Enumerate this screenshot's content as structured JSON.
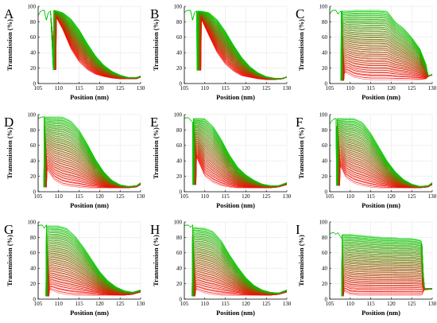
{
  "chart_data": [
    {
      "type": "line",
      "label": "A",
      "xlabel": "Position (nm)",
      "ylabel": "Transmission (%)",
      "xlim": [
        105,
        130
      ],
      "ylim": [
        0,
        100
      ],
      "xticks": [
        105,
        110,
        115,
        120,
        125,
        130
      ],
      "yticks": [
        0,
        20,
        40,
        60,
        80,
        100
      ],
      "grid": true,
      "series_count": 120,
      "color_range": [
        "#ff0000",
        "#00cc00"
      ],
      "baseline": {
        "x": [
          105,
          105.5,
          106,
          106.5,
          107,
          107.5,
          108
        ],
        "y": [
          88,
          93,
          95,
          95,
          82,
          92,
          94
        ]
      },
      "front_x": [
        108.8,
        109.5
      ],
      "top_curve": {
        "x": [
          109,
          111,
          113,
          115,
          117,
          119,
          121,
          123,
          125,
          127,
          129,
          130
        ],
        "y": [
          95,
          92,
          84,
          70,
          52,
          36,
          24,
          16,
          11,
          8,
          8,
          10
        ]
      },
      "bottom_curve": {
        "x": [
          109,
          111,
          113,
          115,
          117,
          119,
          121,
          123,
          125,
          127,
          129,
          130
        ],
        "y": [
          90,
          70,
          45,
          28,
          18,
          12,
          9,
          7,
          6,
          6,
          6,
          8
        ]
      }
    },
    {
      "type": "line",
      "label": "B",
      "xlabel": "Position (nm)",
      "ylabel": "Transmission (%)",
      "xlim": [
        105,
        130
      ],
      "ylim": [
        0,
        100
      ],
      "xticks": [
        105,
        110,
        115,
        120,
        125,
        130
      ],
      "yticks": [
        0,
        20,
        40,
        60,
        80,
        100
      ],
      "grid": true,
      "series_count": 120,
      "color_range": [
        "#ff0000",
        "#00cc00"
      ],
      "baseline": {
        "x": [
          105,
          105.5,
          106,
          106.5,
          107,
          107.5,
          108
        ],
        "y": [
          92,
          94,
          95,
          95,
          82,
          92,
          94
        ]
      },
      "front_x": [
        108.2,
        109.2
      ],
      "top_curve": {
        "x": [
          109,
          111,
          113,
          115,
          117,
          119,
          121,
          123,
          125,
          127,
          129,
          130
        ],
        "y": [
          94,
          92,
          83,
          68,
          50,
          34,
          22,
          14,
          9,
          7,
          7,
          9
        ]
      },
      "bottom_curve": {
        "x": [
          109,
          111,
          113,
          115,
          117,
          119,
          121,
          123,
          125,
          127,
          129,
          130
        ],
        "y": [
          85,
          62,
          40,
          25,
          16,
          10,
          8,
          6,
          5,
          5,
          6,
          8
        ]
      }
    },
    {
      "type": "line",
      "label": "C",
      "xlabel": "Position (nm)",
      "ylabel": "Transmission (%)",
      "xlim": [
        105,
        130
      ],
      "ylim": [
        0,
        100
      ],
      "xticks": [
        105,
        110,
        115,
        120,
        125,
        130
      ],
      "yticks": [
        0,
        20,
        40,
        60,
        80,
        100
      ],
      "grid": true,
      "series_count": 120,
      "color_range": [
        "#ff0000",
        "#00cc00"
      ],
      "baseline": {
        "x": [
          105,
          105.5,
          106,
          106.5,
          107,
          107.5,
          108
        ],
        "y": [
          90,
          94,
          95,
          95,
          90,
          93,
          94
        ]
      },
      "front_x": [
        107.8,
        108.6
      ],
      "top_curve": {
        "x": [
          109,
          111,
          113,
          115,
          117,
          119,
          121,
          123,
          125,
          127,
          128.5,
          129,
          130
        ],
        "y": [
          94,
          95,
          95,
          95,
          95,
          94,
          80,
          72,
          60,
          45,
          25,
          10,
          12
        ]
      },
      "bottom_curve": {
        "x": [
          109,
          111,
          113,
          115,
          117,
          119,
          121,
          123,
          125,
          127,
          128.5,
          129,
          130
        ],
        "y": [
          14,
          8,
          6,
          5,
          5,
          5,
          5,
          5,
          5,
          5,
          6,
          9,
          11
        ]
      }
    },
    {
      "type": "line",
      "label": "D",
      "xlabel": "Position (nm)",
      "ylabel": "Transmission (%)",
      "xlim": [
        105,
        130
      ],
      "ylim": [
        0,
        100
      ],
      "xticks": [
        105,
        110,
        115,
        120,
        125,
        130
      ],
      "yticks": [
        0,
        20,
        40,
        60,
        80,
        100
      ],
      "grid": true,
      "series_count": 120,
      "color_range": [
        "#ff0000",
        "#00cc00"
      ],
      "baseline": {
        "x": [
          105,
          105.5,
          106,
          106.5
        ],
        "y": [
          95,
          96,
          97,
          97
        ]
      },
      "front_x": [
        106.5,
        107.2
      ],
      "top_curve": {
        "x": [
          107,
          109,
          111,
          113,
          115,
          117,
          119,
          121,
          123,
          125,
          127,
          129,
          130
        ],
        "y": [
          97,
          97,
          97,
          92,
          80,
          62,
          42,
          26,
          15,
          9,
          7,
          8,
          12
        ]
      },
      "bottom_curve": {
        "x": [
          107,
          109,
          111,
          113,
          115,
          117,
          119,
          121,
          123,
          125,
          127,
          129,
          130
        ],
        "y": [
          30,
          15,
          9,
          7,
          6,
          5,
          5,
          5,
          5,
          5,
          5,
          6,
          9
        ]
      }
    },
    {
      "type": "line",
      "label": "E",
      "xlabel": "Position (nm)",
      "ylabel": "Transmission (%)",
      "xlim": [
        105,
        130
      ],
      "ylim": [
        0,
        100
      ],
      "xticks": [
        105,
        110,
        115,
        120,
        125,
        130
      ],
      "yticks": [
        0,
        20,
        40,
        60,
        80,
        100
      ],
      "grid": true,
      "series_count": 120,
      "color_range": [
        "#ff0000",
        "#00cc00"
      ],
      "baseline": {
        "x": [
          105,
          105.5,
          106,
          106.5,
          107
        ],
        "y": [
          95,
          96,
          96,
          93,
          90
        ]
      },
      "front_x": [
        107.2,
        108.0
      ],
      "top_curve": {
        "x": [
          108,
          110,
          112,
          114,
          116,
          118,
          120,
          122,
          124,
          126,
          128,
          130
        ],
        "y": [
          95,
          95,
          85,
          68,
          48,
          32,
          22,
          15,
          10,
          8,
          8,
          12
        ]
      },
      "bottom_curve": {
        "x": [
          108,
          110,
          112,
          114,
          116,
          118,
          120,
          122,
          124,
          126,
          128,
          130
        ],
        "y": [
          45,
          20,
          12,
          8,
          6,
          5,
          5,
          5,
          5,
          5,
          6,
          9
        ]
      }
    },
    {
      "type": "line",
      "label": "F",
      "xlabel": "Position (nm)",
      "ylabel": "Transmission (%)",
      "xlim": [
        105,
        130
      ],
      "ylim": [
        0,
        100
      ],
      "xticks": [
        105,
        110,
        115,
        120,
        125,
        130
      ],
      "yticks": [
        0,
        20,
        40,
        60,
        80,
        100
      ],
      "grid": true,
      "series_count": 120,
      "color_range": [
        "#ff0000",
        "#00cc00"
      ],
      "baseline": {
        "x": [
          105,
          105.5,
          106,
          106.5
        ],
        "y": [
          88,
          92,
          94,
          95
        ]
      },
      "front_x": [
        106.8,
        107.6
      ],
      "top_curve": {
        "x": [
          107,
          109,
          111,
          113,
          115,
          117,
          119,
          121,
          123,
          125,
          127,
          129,
          130
        ],
        "y": [
          95,
          95,
          95,
          90,
          76,
          58,
          40,
          26,
          16,
          10,
          7,
          8,
          12
        ]
      },
      "bottom_curve": {
        "x": [
          107,
          109,
          111,
          113,
          115,
          117,
          119,
          121,
          123,
          125,
          127,
          129,
          130
        ],
        "y": [
          40,
          18,
          11,
          8,
          6,
          5,
          5,
          5,
          5,
          5,
          5,
          6,
          9
        ]
      }
    },
    {
      "type": "line",
      "label": "G",
      "xlabel": "Position (nm)",
      "ylabel": "Transmission (%)",
      "xlim": [
        105,
        130
      ],
      "ylim": [
        0,
        100
      ],
      "xticks": [
        105,
        110,
        115,
        120,
        125,
        130
      ],
      "yticks": [
        0,
        20,
        40,
        60,
        80,
        100
      ],
      "grid": true,
      "series_count": 120,
      "color_range": [
        "#ff0000",
        "#00cc00"
      ],
      "baseline": {
        "x": [
          105,
          105.5,
          106,
          106.5,
          107
        ],
        "y": [
          95,
          96,
          96,
          92,
          96
        ]
      },
      "front_x": [
        107.0,
        107.8
      ],
      "top_curve": {
        "x": [
          108,
          110,
          112,
          114,
          116,
          118,
          120,
          122,
          124,
          126,
          128,
          130
        ],
        "y": [
          95,
          95,
          92,
          82,
          68,
          52,
          36,
          24,
          16,
          11,
          9,
          12
        ]
      },
      "bottom_curve": {
        "x": [
          108,
          110,
          112,
          114,
          116,
          118,
          120,
          122,
          124,
          126,
          128,
          130
        ],
        "y": [
          12,
          8,
          6,
          5,
          5,
          5,
          5,
          5,
          5,
          5,
          6,
          9
        ]
      }
    },
    {
      "type": "line",
      "label": "H",
      "xlabel": "Position (nm)",
      "ylabel": "Transmission (%)",
      "xlim": [
        105,
        130
      ],
      "ylim": [
        0,
        100
      ],
      "xticks": [
        105,
        110,
        115,
        120,
        125,
        130
      ],
      "yticks": [
        0,
        20,
        40,
        60,
        80,
        100
      ],
      "grid": true,
      "series_count": 120,
      "color_range": [
        "#ff0000",
        "#00cc00"
      ],
      "baseline": {
        "x": [
          105,
          105.5,
          106,
          106.5,
          107
        ],
        "y": [
          95,
          96,
          96,
          93,
          96
        ]
      },
      "front_x": [
        107.0,
        107.8
      ],
      "top_curve": {
        "x": [
          108,
          110,
          112,
          114,
          116,
          118,
          120,
          122,
          124,
          126,
          128,
          130
        ],
        "y": [
          93,
          92,
          88,
          76,
          58,
          42,
          28,
          18,
          12,
          9,
          8,
          12
        ]
      },
      "bottom_curve": {
        "x": [
          108,
          110,
          112,
          114,
          116,
          118,
          120,
          122,
          124,
          126,
          128,
          130
        ],
        "y": [
          12,
          8,
          6,
          5,
          5,
          5,
          5,
          5,
          5,
          5,
          6,
          9
        ]
      }
    },
    {
      "type": "line",
      "label": "I",
      "xlabel": "Position (nm)",
      "ylabel": "Transmission (%)",
      "xlim": [
        105,
        130
      ],
      "ylim": [
        0,
        100
      ],
      "xticks": [
        105,
        110,
        115,
        120,
        125,
        130
      ],
      "yticks": [
        0,
        20,
        40,
        60,
        80,
        100
      ],
      "grid": true,
      "series_count": 120,
      "color_range": [
        "#ff0000",
        "#00cc00"
      ],
      "baseline": {
        "x": [
          105,
          105.5,
          106,
          106.5,
          107,
          107.5,
          108
        ],
        "y": [
          84,
          86,
          86,
          84,
          86,
          82,
          78
        ]
      },
      "front_x": [
        108.0,
        108.5
      ],
      "top_curve": {
        "x": [
          108.5,
          110,
          112,
          114,
          116,
          118,
          120,
          122,
          124,
          126,
          127.5,
          128,
          130
        ],
        "y": [
          84,
          84,
          83,
          82,
          81,
          80,
          80,
          79,
          79,
          78,
          76,
          14,
          14
        ]
      },
      "bottom_curve": {
        "x": [
          108.5,
          110,
          112,
          114,
          116,
          118,
          120,
          122,
          124,
          126,
          127.5,
          128,
          130
        ],
        "y": [
          10,
          6,
          5,
          5,
          5,
          5,
          5,
          5,
          5,
          5,
          5,
          12,
          13
        ]
      }
    }
  ]
}
